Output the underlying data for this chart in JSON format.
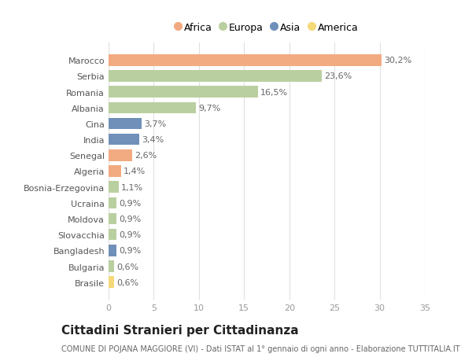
{
  "countries": [
    "Marocco",
    "Serbia",
    "Romania",
    "Albania",
    "Cina",
    "India",
    "Senegal",
    "Algeria",
    "Bosnia-Erzegovina",
    "Ucraina",
    "Moldova",
    "Slovacchia",
    "Bangladesh",
    "Bulgaria",
    "Brasile"
  ],
  "values": [
    30.2,
    23.6,
    16.5,
    9.7,
    3.7,
    3.4,
    2.6,
    1.4,
    1.1,
    0.9,
    0.9,
    0.9,
    0.9,
    0.6,
    0.6
  ],
  "labels": [
    "30,2%",
    "23,6%",
    "16,5%",
    "9,7%",
    "3,7%",
    "3,4%",
    "2,6%",
    "1,4%",
    "1,1%",
    "0,9%",
    "0,9%",
    "0,9%",
    "0,9%",
    "0,6%",
    "0,6%"
  ],
  "continents": [
    "Africa",
    "Europa",
    "Europa",
    "Europa",
    "Asia",
    "Asia",
    "Africa",
    "Africa",
    "Europa",
    "Europa",
    "Europa",
    "Europa",
    "Asia",
    "Europa",
    "America"
  ],
  "continent_colors": {
    "Africa": "#F2AA80",
    "Europa": "#BACFA0",
    "Asia": "#7090BA",
    "America": "#F5D878"
  },
  "legend_order": [
    "Africa",
    "Europa",
    "Asia",
    "America"
  ],
  "title": "Cittadini Stranieri per Cittadinanza",
  "subtitle": "COMUNE DI POJANA MAGGIORE (VI) - Dati ISTAT al 1° gennaio di ogni anno - Elaborazione TUTTITALIA.IT",
  "xlim": [
    0,
    35
  ],
  "xticks": [
    0,
    5,
    10,
    15,
    20,
    25,
    30,
    35
  ],
  "background_color": "#ffffff",
  "grid_color": "#e0e0e0",
  "bar_height": 0.72,
  "title_fontsize": 11,
  "subtitle_fontsize": 7,
  "label_fontsize": 8,
  "tick_fontsize": 8,
  "legend_fontsize": 9
}
